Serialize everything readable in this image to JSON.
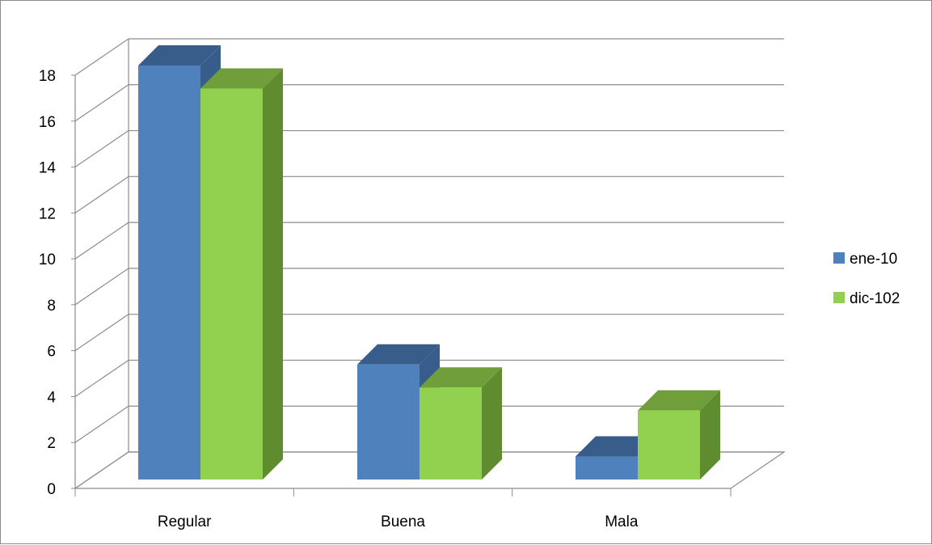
{
  "chart_data": {
    "type": "bar",
    "title": "",
    "xlabel": "",
    "ylabel": "",
    "categories": [
      "Regular",
      "Buena",
      "Mala"
    ],
    "series": [
      {
        "name": "ene-10",
        "values": [
          18,
          5,
          1
        ],
        "color": "#4f81bd",
        "top_color": "#385d8a",
        "side_color": "#385d8a"
      },
      {
        "name": "dic-102",
        "values": [
          17,
          4,
          3
        ],
        "color": "#92d050",
        "top_color": "#6f9e3a",
        "side_color": "#5e8c2e"
      }
    ],
    "ylim": [
      0,
      18
    ],
    "yticks": [
      0,
      2,
      4,
      6,
      8,
      10,
      12,
      14,
      16,
      18
    ],
    "grid": true,
    "legend_position": "right",
    "three_d": true
  }
}
